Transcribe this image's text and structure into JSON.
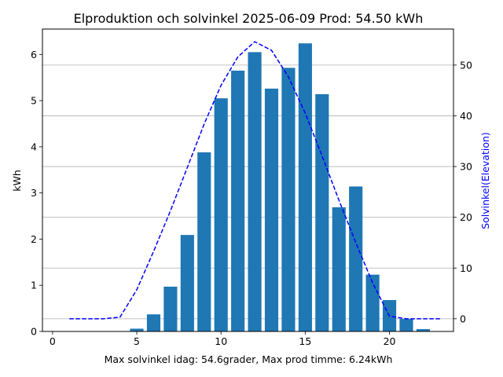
{
  "chart_data": {
    "type": "bar",
    "title": "Elproduktion och solvinkel 2025-06-09 Prod: 54.50 kWh",
    "xlabel": "Max solvinkel idag: 54.6grader, Max prod timme: 6.24kWh",
    "ylabel": "kWh",
    "y2label": "Solvinkel(Elevation)",
    "xlim": [
      -0.6,
      23.8
    ],
    "ylim": [
      0,
      6.55
    ],
    "y2lim": [
      -2.5,
      57.1
    ],
    "xticks": [
      0,
      5,
      10,
      15,
      20
    ],
    "yticks": [
      0,
      1,
      2,
      3,
      4,
      5,
      6
    ],
    "y2ticks": [
      0,
      10,
      20,
      30,
      40,
      50
    ],
    "y2grid": true,
    "colors": {
      "bars": "#1f77b4",
      "line": "#0000ff",
      "grid": "#b0b0b0",
      "y2label": "#0000ff"
    },
    "series": [
      {
        "kind": "bar",
        "axis": "left",
        "x": [
          5,
          6,
          7,
          8,
          9,
          10,
          11,
          12,
          13,
          14,
          15,
          16,
          17,
          18,
          19,
          20,
          21,
          22
        ],
        "values": [
          0.06,
          0.37,
          0.97,
          2.09,
          3.88,
          5.05,
          5.65,
          6.05,
          5.26,
          5.71,
          6.24,
          5.14,
          2.69,
          3.14,
          1.23,
          0.68,
          0.27,
          0.05
        ]
      },
      {
        "kind": "line",
        "style": "dashed",
        "axis": "right",
        "x": [
          1,
          2,
          3,
          4,
          5,
          6,
          7,
          8,
          9,
          10,
          11,
          12,
          13,
          14,
          15,
          16,
          17,
          18,
          19,
          20,
          21,
          22,
          23
        ],
        "values": [
          0,
          0,
          0,
          0.3,
          5.7,
          13.3,
          21.3,
          29.8,
          38.4,
          46.0,
          51.6,
          54.6,
          52.9,
          47.7,
          40.5,
          32.1,
          23.4,
          15.0,
          7.1,
          0.5,
          0,
          0,
          0
        ]
      }
    ]
  }
}
